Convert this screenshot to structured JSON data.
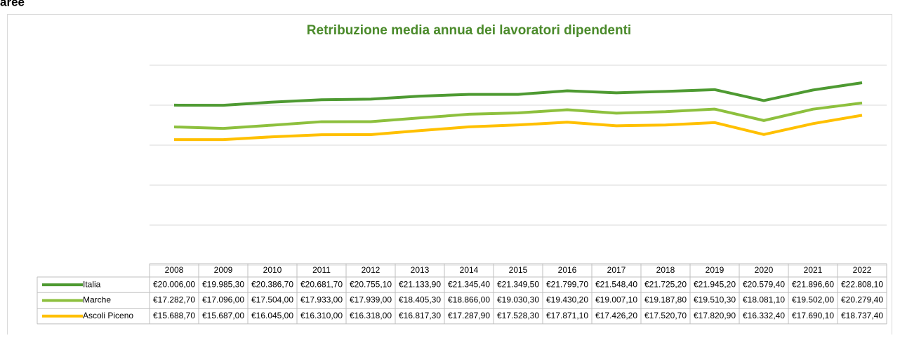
{
  "heading": "aree",
  "chart_data": {
    "type": "line",
    "title": "Retribuzione media annua dei lavoratori dipendenti",
    "categories": [
      "2008",
      "2009",
      "2010",
      "2011",
      "2012",
      "2013",
      "2014",
      "2015",
      "2016",
      "2017",
      "2018",
      "2019",
      "2020",
      "2021",
      "2022"
    ],
    "series": [
      {
        "name": "Italia",
        "color": "#4e9a32",
        "values": [
          20006.0,
          19985.3,
          20386.7,
          20681.7,
          20755.1,
          21133.9,
          21345.4,
          21349.5,
          21799.7,
          21548.4,
          21725.2,
          21945.2,
          20579.4,
          21896.6,
          22808.1
        ],
        "value_labels": [
          "€20.006,00",
          "€19.985,30",
          "€20.386,70",
          "€20.681,70",
          "€20.755,10",
          "€21.133,90",
          "€21.345,40",
          "€21.349,50",
          "€21.799,70",
          "€21.548,40",
          "€21.725,20",
          "€21.945,20",
          "€20.579,40",
          "€21.896,60",
          "€22.808,10"
        ]
      },
      {
        "name": "Marche",
        "color": "#8dc03e",
        "values": [
          17282.7,
          17096.0,
          17504.0,
          17933.0,
          17939.0,
          18405.3,
          18866.0,
          19030.3,
          19430.2,
          19007.1,
          19187.8,
          19510.3,
          18081.1,
          19502.0,
          20279.4
        ],
        "value_labels": [
          "€17.282,70",
          "€17.096,00",
          "€17.504,00",
          "€17.933,00",
          "€17.939,00",
          "€18.405,30",
          "€18.866,00",
          "€19.030,30",
          "€19.430,20",
          "€19.007,10",
          "€19.187,80",
          "€19.510,30",
          "€18.081,10",
          "€19.502,00",
          "€20.279,40"
        ]
      },
      {
        "name": "Ascoli Piceno",
        "color": "#ffc000",
        "values": [
          15688.7,
          15687.0,
          16045.0,
          16310.0,
          16318.0,
          16817.3,
          17287.9,
          17528.3,
          17871.1,
          17426.2,
          17520.7,
          17820.9,
          16332.4,
          17690.1,
          18737.4
        ],
        "value_labels": [
          "€15.688,70",
          "€15.687,00",
          "€16.045,00",
          "€16.310,00",
          "€16.318,00",
          "€16.817,30",
          "€17.287,90",
          "€17.528,30",
          "€17.871,10",
          "€17.426,20",
          "€17.520,70",
          "€17.820,90",
          "€16.332,40",
          "€17.690,10",
          "€18.737,40"
        ]
      }
    ],
    "ylim": [
      0,
      25000
    ],
    "yticks": [
      0,
      5000,
      10000,
      15000,
      20000,
      25000
    ],
    "grid": true,
    "title_color": "#4a8a2a"
  }
}
